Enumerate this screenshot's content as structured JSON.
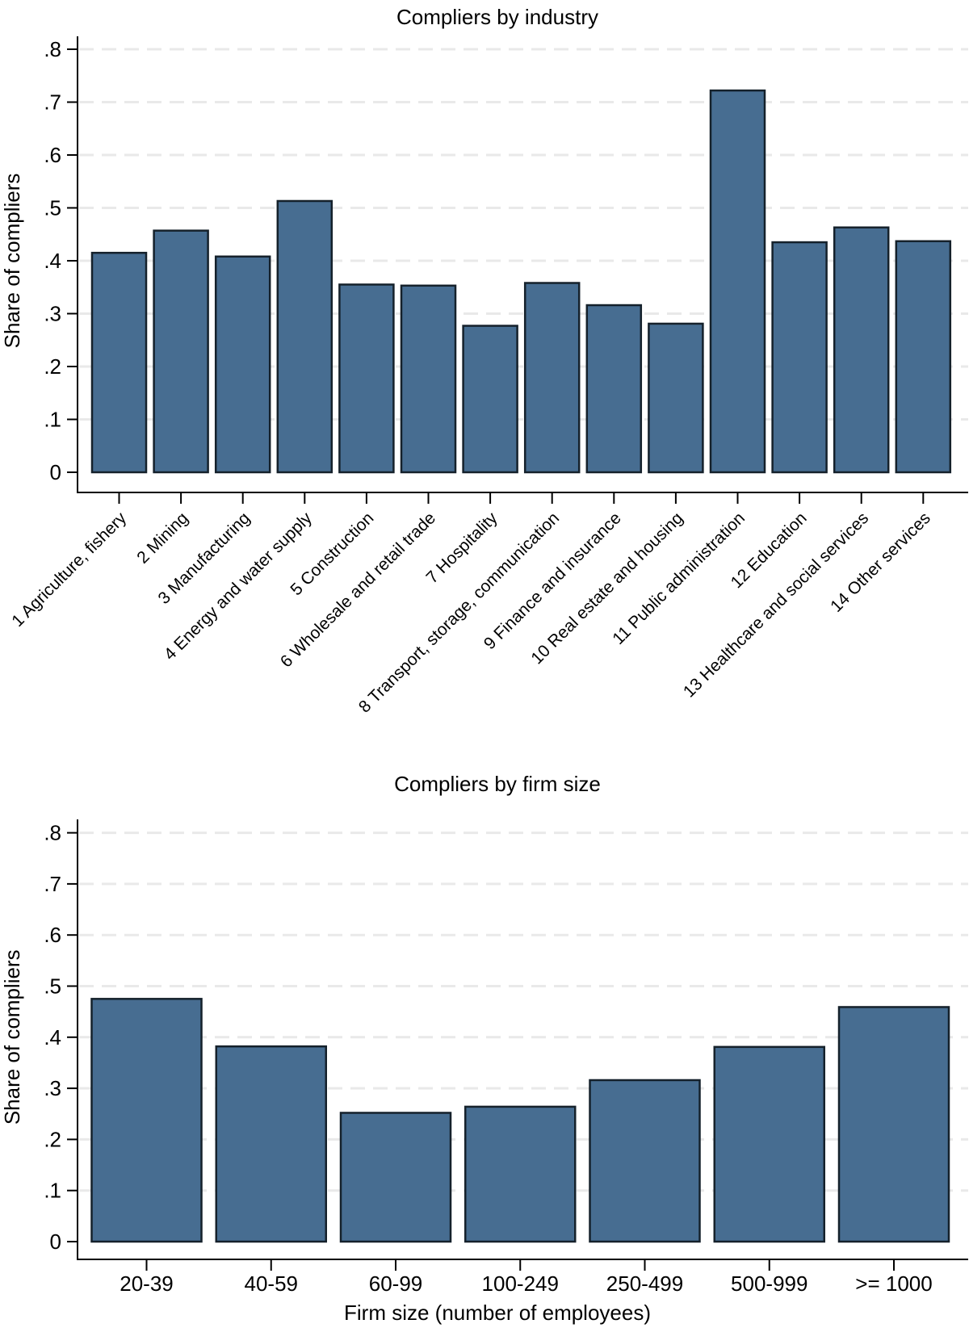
{
  "page": {
    "background": "#ffffff"
  },
  "chart_data": [
    {
      "type": "bar",
      "title": "Compliers by industry",
      "xlabel": "",
      "ylabel": "Share of compliers",
      "categories": [
        "1 Agriculture, fishery",
        "2 Mining",
        "3 Manufacturing",
        "4 Energy and water supply",
        "5 Construction",
        "6 Wholesale and retail trade",
        "7 Hospitality",
        "8 Transport, storage, communication",
        "9 Finance and insurance",
        "10 Real estate and housing",
        "11 Public administration",
        "12 Education",
        "13 Healthcare and social services",
        "14 Other services"
      ],
      "values": [
        0.415,
        0.457,
        0.408,
        0.513,
        0.355,
        0.353,
        0.277,
        0.358,
        0.316,
        0.281,
        0.722,
        0.435,
        0.463,
        0.437
      ],
      "ylim": [
        0,
        0.8
      ],
      "yticks": [
        0,
        0.1,
        0.2,
        0.3,
        0.4,
        0.5,
        0.6,
        0.7,
        0.8
      ],
      "ytick_labels": [
        "0",
        ".1",
        ".2",
        ".3",
        ".4",
        ".5",
        ".6",
        ".7",
        ".8"
      ],
      "grid": "horizontal-dashed",
      "legend": "none",
      "category_label_rotation": 45,
      "bar_fill": "#476D91",
      "bar_stroke": "#15212B",
      "grid_color": "#e9e9e9",
      "axis_color": "#000000"
    },
    {
      "type": "bar",
      "title": "Compliers by firm size",
      "xlabel": "Firm size (number of employees)",
      "ylabel": "Share of compliers",
      "categories": [
        "20-39",
        "40-59",
        "60-99",
        "100-249",
        "250-499",
        "500-999",
        ">= 1000"
      ],
      "values": [
        0.475,
        0.382,
        0.252,
        0.264,
        0.316,
        0.381,
        0.459
      ],
      "ylim": [
        0,
        0.8
      ],
      "yticks": [
        0,
        0.1,
        0.2,
        0.3,
        0.4,
        0.5,
        0.6,
        0.7,
        0.8
      ],
      "ytick_labels": [
        "0",
        ".1",
        ".2",
        ".3",
        ".4",
        ".5",
        ".6",
        ".7",
        ".8"
      ],
      "grid": "horizontal-dashed",
      "legend": "none",
      "category_label_rotation": 0,
      "bar_fill": "#476D91",
      "bar_stroke": "#15212B",
      "grid_color": "#e9e9e9",
      "axis_color": "#000000"
    }
  ]
}
